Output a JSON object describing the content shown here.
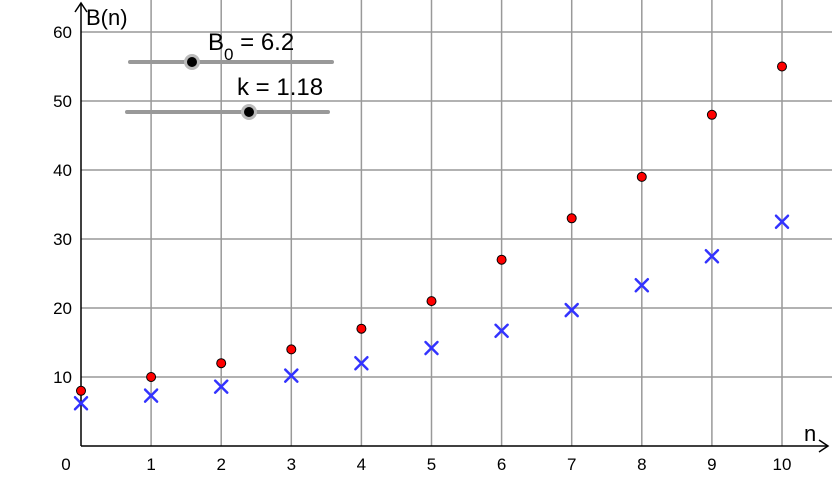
{
  "chart_data": {
    "type": "scatter",
    "title": "",
    "xlabel": "n",
    "ylabel": "B(n)",
    "xlim": [
      0,
      10.6
    ],
    "ylim": [
      -0.5,
      64
    ],
    "grid": true,
    "x_ticks": [
      0,
      1,
      2,
      3,
      4,
      5,
      6,
      7,
      8,
      9,
      10
    ],
    "y_ticks": [
      10,
      20,
      30,
      40,
      50,
      60
    ],
    "series": [
      {
        "marker": "dot",
        "color": "#ff0000",
        "points": [
          [
            0,
            8
          ],
          [
            1,
            10
          ],
          [
            2,
            12
          ],
          [
            3,
            14
          ],
          [
            4,
            17
          ],
          [
            5,
            21
          ],
          [
            6,
            27
          ],
          [
            7,
            33
          ],
          [
            8,
            39
          ],
          [
            9,
            48
          ],
          [
            10,
            55
          ]
        ]
      },
      {
        "marker": "cross",
        "color": "#3333ff",
        "points": [
          [
            0,
            6.2
          ],
          [
            1,
            7.3
          ],
          [
            2,
            8.6
          ],
          [
            3,
            10.2
          ],
          [
            4,
            12.0
          ],
          [
            5,
            14.2
          ],
          [
            6,
            16.7
          ],
          [
            7,
            19.7
          ],
          [
            8,
            23.3
          ],
          [
            9,
            27.5
          ],
          [
            10,
            32.5
          ]
        ]
      }
    ]
  },
  "sliders": [
    {
      "name": "B",
      "subscript": "0",
      "value_text": " = 6.2",
      "position": 0.22
    },
    {
      "name": "k",
      "subscript": "",
      "value_text": " = 1.18",
      "position": 0.6
    }
  ]
}
